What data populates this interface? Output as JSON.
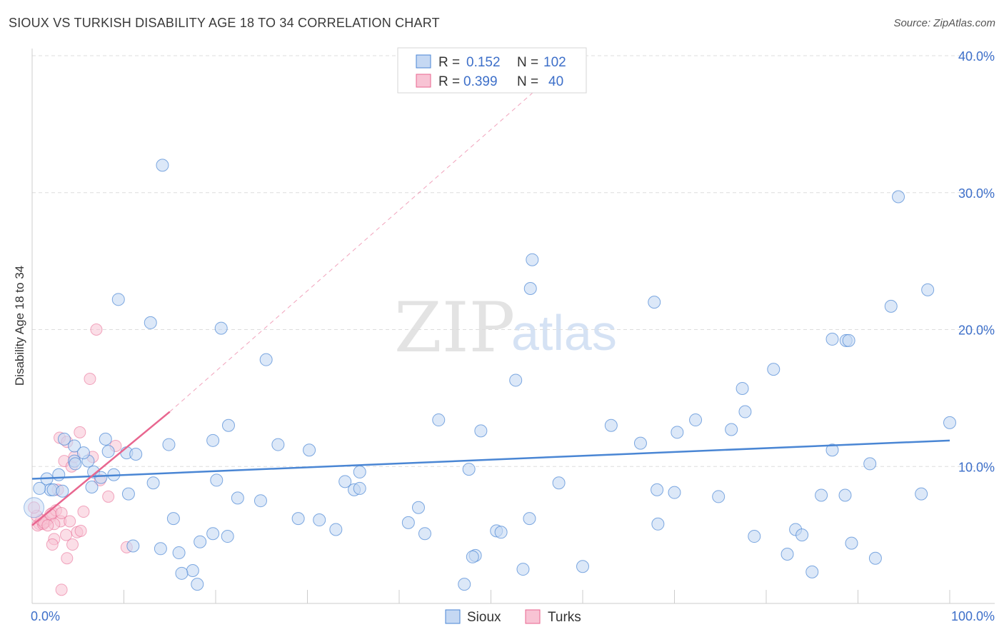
{
  "header": {
    "title": "SIOUX VS TURKISH DISABILITY AGE 18 TO 34 CORRELATION CHART",
    "source": "Source: ZipAtlas.com"
  },
  "watermark": {
    "zip": "ZIP",
    "atlas": "atlas"
  },
  "colors": {
    "sioux": "#4a86d4",
    "sioux_fill": "#c5d8f3",
    "turks": "#e8668f",
    "turks_fill": "#f8c3d4",
    "axis_text": "#3d6fc9",
    "grid": "#dddddd"
  },
  "legend": {
    "rows": [
      {
        "r_label": "R =",
        "r_value": "0.152",
        "n_label": "N =",
        "n_value": "102"
      },
      {
        "r_label": "R =",
        "r_value": "0.399",
        "n_label": "N =",
        "n_value": "40"
      }
    ]
  },
  "bottom_legend": {
    "sioux": "Sioux",
    "turks": "Turks"
  },
  "chart_data": {
    "type": "scatter",
    "title": "SIOUX VS TURKISH DISABILITY AGE 18 TO 34 CORRELATION CHART",
    "xlabel": "",
    "ylabel": "Disability Age 18 to 34",
    "xlim": [
      0,
      100
    ],
    "ylim": [
      0,
      40
    ],
    "x_tick_labels": [
      "0.0%",
      "100.0%"
    ],
    "y_ticks": [
      10,
      20,
      30,
      40
    ],
    "y_tick_labels": [
      "10.0%",
      "20.0%",
      "30.0%",
      "40.0%"
    ],
    "grid": true,
    "legend_position": "top-center",
    "series": [
      {
        "name": "Sioux",
        "r": 0.152,
        "n": 102,
        "trend": {
          "x": [
            0,
            100
          ],
          "y": [
            9.1,
            11.9
          ]
        },
        "points": [
          [
            14.2,
            32.0
          ],
          [
            9.4,
            22.2
          ],
          [
            12.9,
            20.5
          ],
          [
            20.6,
            20.1
          ],
          [
            25.5,
            17.8
          ],
          [
            10.3,
            11.0
          ],
          [
            11.3,
            10.9
          ],
          [
            6.1,
            10.4
          ],
          [
            4.6,
            11.5
          ],
          [
            3.5,
            12.0
          ],
          [
            1.6,
            9.1
          ],
          [
            2.9,
            9.4
          ],
          [
            2.0,
            8.3
          ],
          [
            5.6,
            11.0
          ],
          [
            4.6,
            10.4
          ],
          [
            6.7,
            9.6
          ],
          [
            7.5,
            9.2
          ],
          [
            8.0,
            12.0
          ],
          [
            8.3,
            11.1
          ],
          [
            8.9,
            9.4
          ],
          [
            0.8,
            8.4
          ],
          [
            2.3,
            8.3
          ],
          [
            3.3,
            8.2
          ],
          [
            4.7,
            10.2
          ],
          [
            6.5,
            8.5
          ],
          [
            10.5,
            8.0
          ],
          [
            13.2,
            8.8
          ],
          [
            14.9,
            11.6
          ],
          [
            19.7,
            11.9
          ],
          [
            21.4,
            13.0
          ],
          [
            22.4,
            7.7
          ],
          [
            24.9,
            7.5
          ],
          [
            26.8,
            11.6
          ],
          [
            29.0,
            6.2
          ],
          [
            30.2,
            11.2
          ],
          [
            31.3,
            6.1
          ],
          [
            33.1,
            5.4
          ],
          [
            34.1,
            8.9
          ],
          [
            35.1,
            8.3
          ],
          [
            35.7,
            9.6
          ],
          [
            41.0,
            5.9
          ],
          [
            42.1,
            7.0
          ],
          [
            42.8,
            5.1
          ],
          [
            44.3,
            13.4
          ],
          [
            47.6,
            9.8
          ],
          [
            48.3,
            3.5
          ],
          [
            48.9,
            12.6
          ],
          [
            50.6,
            5.3
          ],
          [
            51.1,
            5.2
          ],
          [
            52.7,
            16.3
          ],
          [
            53.5,
            2.5
          ],
          [
            54.2,
            6.2
          ],
          [
            54.5,
            25.1
          ],
          [
            54.3,
            23.0
          ],
          [
            57.4,
            8.8
          ],
          [
            60.0,
            2.7
          ],
          [
            63.1,
            13.0
          ],
          [
            66.3,
            11.7
          ],
          [
            67.8,
            22.0
          ],
          [
            68.1,
            8.3
          ],
          [
            68.2,
            5.8
          ],
          [
            70.0,
            8.1
          ],
          [
            70.3,
            12.5
          ],
          [
            72.3,
            13.4
          ],
          [
            74.8,
            7.8
          ],
          [
            76.2,
            12.7
          ],
          [
            77.4,
            15.7
          ],
          [
            77.7,
            14.0
          ],
          [
            78.7,
            4.9
          ],
          [
            80.8,
            17.1
          ],
          [
            82.3,
            3.6
          ],
          [
            83.2,
            5.4
          ],
          [
            83.9,
            5.0
          ],
          [
            85.0,
            2.3
          ],
          [
            86.0,
            7.9
          ],
          [
            87.2,
            19.3
          ],
          [
            88.6,
            7.9
          ],
          [
            88.7,
            19.2
          ],
          [
            89.0,
            19.2
          ],
          [
            89.3,
            4.4
          ],
          [
            91.3,
            10.2
          ],
          [
            91.9,
            3.3
          ],
          [
            93.6,
            21.7
          ],
          [
            94.4,
            29.7
          ],
          [
            96.9,
            8.0
          ],
          [
            97.6,
            22.9
          ],
          [
            100.0,
            13.2
          ],
          [
            87.2,
            11.2
          ],
          [
            35.7,
            8.4
          ],
          [
            11.0,
            4.2
          ],
          [
            14.0,
            4.0
          ],
          [
            16.0,
            3.7
          ],
          [
            17.5,
            2.4
          ],
          [
            18.3,
            4.5
          ],
          [
            19.7,
            5.1
          ],
          [
            21.3,
            4.9
          ],
          [
            16.3,
            2.2
          ],
          [
            18.0,
            1.4
          ],
          [
            47.1,
            1.4
          ],
          [
            48.0,
            3.4
          ],
          [
            15.4,
            6.2
          ],
          [
            20.1,
            9.0
          ]
        ]
      },
      {
        "name": "Turks",
        "r": 0.399,
        "n": 40,
        "trend": {
          "x": [
            0,
            15
          ],
          "y": [
            5.7,
            14.0
          ]
        },
        "trend_extended": {
          "x": [
            15,
            60
          ],
          "y": [
            14.0,
            40.5
          ]
        },
        "points": [
          [
            7.0,
            20.0
          ],
          [
            6.3,
            16.4
          ],
          [
            5.2,
            12.5
          ],
          [
            3.0,
            12.1
          ],
          [
            3.8,
            11.8
          ],
          [
            9.1,
            11.5
          ],
          [
            1.5,
            6.0
          ],
          [
            0.8,
            5.8
          ],
          [
            0.6,
            5.7
          ],
          [
            1.2,
            5.8
          ],
          [
            1.8,
            6.2
          ],
          [
            2.2,
            6.6
          ],
          [
            2.6,
            6.8
          ],
          [
            3.1,
            6.0
          ],
          [
            1.0,
            6.1
          ],
          [
            1.3,
            5.9
          ],
          [
            0.5,
            6.4
          ],
          [
            2.0,
            6.5
          ],
          [
            2.4,
            5.8
          ],
          [
            1.7,
            5.7
          ],
          [
            2.8,
            8.3
          ],
          [
            3.5,
            10.4
          ],
          [
            4.3,
            10.0
          ],
          [
            4.6,
            10.7
          ],
          [
            6.6,
            10.7
          ],
          [
            7.4,
            9.0
          ],
          [
            8.3,
            7.8
          ],
          [
            5.6,
            6.7
          ],
          [
            4.9,
            5.2
          ],
          [
            4.4,
            4.3
          ],
          [
            4.1,
            6.0
          ],
          [
            3.7,
            5.0
          ],
          [
            2.4,
            4.7
          ],
          [
            2.2,
            4.3
          ],
          [
            3.8,
            3.3
          ],
          [
            10.3,
            4.1
          ],
          [
            5.3,
            5.3
          ],
          [
            3.2,
            6.6
          ],
          [
            3.2,
            1.0
          ],
          [
            0.2,
            7.0
          ]
        ]
      }
    ]
  }
}
